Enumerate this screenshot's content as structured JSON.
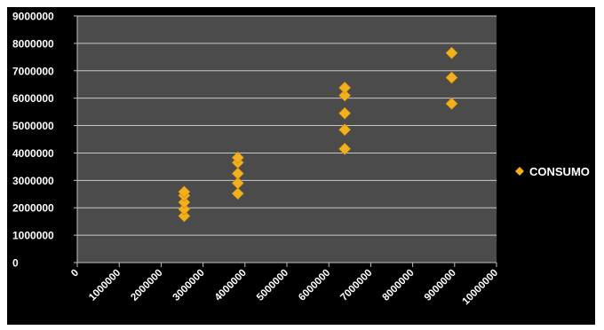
{
  "chart_data": {
    "type": "scatter",
    "title": "",
    "xlabel": "",
    "ylabel": "",
    "xlim": [
      0,
      10000000
    ],
    "ylim": [
      0,
      9000000
    ],
    "x_ticks": [
      0,
      1000000,
      2000000,
      3000000,
      4000000,
      5000000,
      6000000,
      7000000,
      8000000,
      9000000,
      10000000
    ],
    "y_ticks": [
      0,
      1000000,
      2000000,
      3000000,
      4000000,
      5000000,
      6000000,
      7000000,
      8000000,
      9000000
    ],
    "grid": "horizontal",
    "legend": "right",
    "marker": "diamond",
    "series": [
      {
        "name": "CONSUMO",
        "color": "#f2b01e",
        "points": [
          [
            2550000,
            1700000
          ],
          [
            2550000,
            1950000
          ],
          [
            2550000,
            2200000
          ],
          [
            2550000,
            2450000
          ],
          [
            2550000,
            2580000
          ],
          [
            3830000,
            2520000
          ],
          [
            3830000,
            2900000
          ],
          [
            3830000,
            3250000
          ],
          [
            3830000,
            3650000
          ],
          [
            3830000,
            3830000
          ],
          [
            6380000,
            4150000
          ],
          [
            6380000,
            4850000
          ],
          [
            6380000,
            5450000
          ],
          [
            6380000,
            6100000
          ],
          [
            6380000,
            6380000
          ],
          [
            8930000,
            5800000
          ],
          [
            8930000,
            6750000
          ],
          [
            8930000,
            7650000
          ]
        ]
      }
    ]
  },
  "colors": {
    "background": "#000000",
    "plot_area": "#4b4b4b",
    "gridline": "#c8c8c8",
    "text": "#ffffff"
  }
}
